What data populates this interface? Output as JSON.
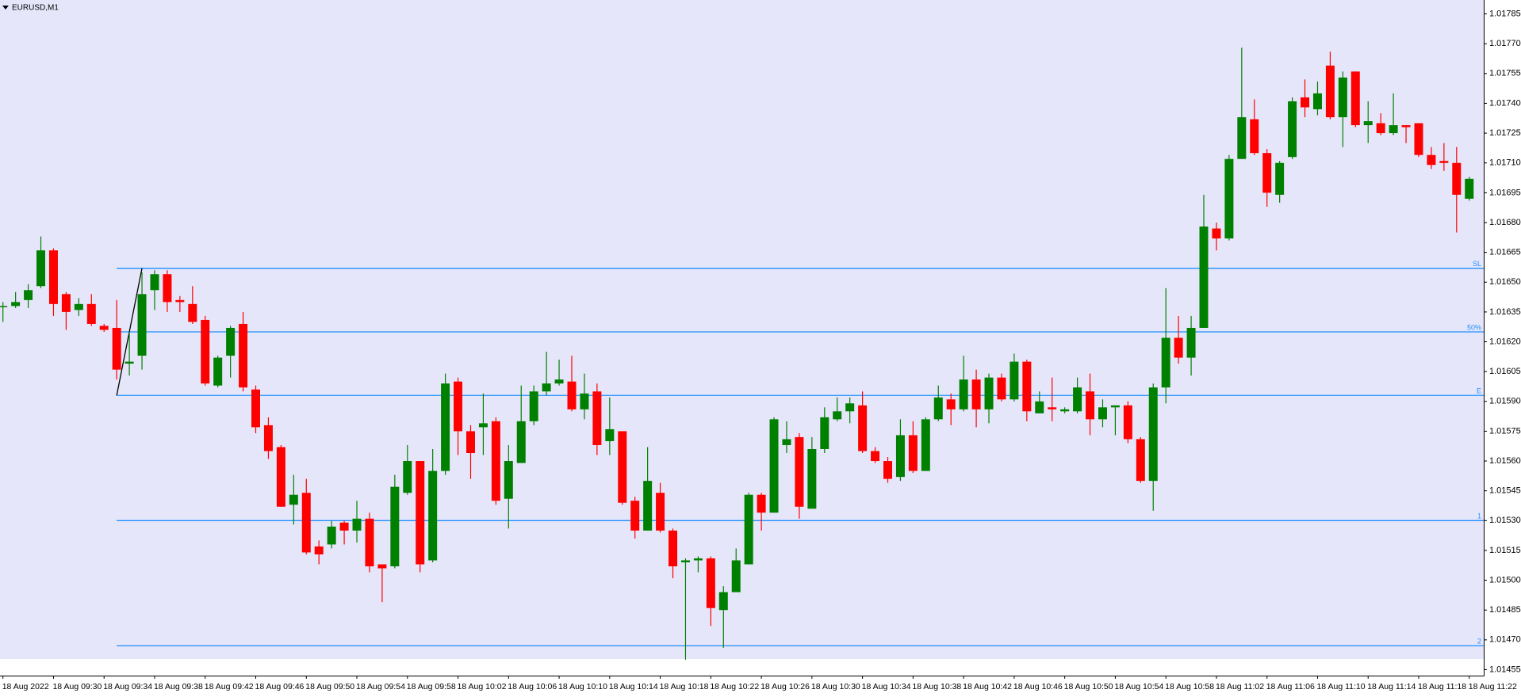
{
  "chart_data": {
    "type": "candlestick",
    "title": "EURUSD,M1",
    "categories": [
      "18 Aug 2022",
      null,
      null,
      null,
      "18 Aug 09:30",
      null,
      null,
      null,
      "18 Aug 09:34",
      null,
      null,
      null,
      "18 Aug 09:38",
      null,
      null,
      null,
      "18 Aug 09:42",
      null,
      null,
      null,
      "18 Aug 09:46",
      null,
      null,
      null,
      "18 Aug 09:50",
      null,
      null,
      null,
      "18 Aug 09:54",
      null,
      null,
      null,
      "18 Aug 09:58",
      null,
      null,
      null,
      "18 Aug 10:02",
      null,
      null,
      null,
      "18 Aug 10:06",
      null,
      null,
      null,
      "18 Aug 10:10",
      null,
      null,
      null,
      "18 Aug 10:14",
      null,
      null,
      null,
      "18 Aug 10:18",
      null,
      null,
      null,
      "18 Aug 10:22",
      null,
      null,
      null,
      "18 Aug 10:26",
      null,
      null,
      null,
      "18 Aug 10:30",
      null,
      null,
      null,
      "18 Aug 10:34",
      null,
      null,
      null,
      "18 Aug 10:38",
      null,
      null,
      null,
      "18 Aug 10:42",
      null,
      null,
      null,
      "18 Aug 10:46",
      null,
      null,
      null,
      "18 Aug 10:50",
      null,
      null,
      null,
      "18 Aug 10:54",
      null,
      null,
      null,
      "18 Aug 10:58",
      null,
      null,
      null,
      "18 Aug 11:02",
      null,
      null,
      null,
      "18 Aug 11:06",
      null,
      null,
      null,
      "18 Aug 11:10",
      null,
      null,
      null,
      "18 Aug 11:14",
      null,
      null,
      null,
      "18 Aug 11:18",
      null,
      null,
      null,
      "18 Aug 11:22"
    ],
    "open": [
      1.01638,
      1.01638,
      1.01641,
      1.01648,
      1.01666,
      1.01644,
      1.01636,
      1.01639,
      1.01628,
      1.01627,
      1.01609,
      1.01613,
      1.01646,
      1.01654,
      1.01641,
      1.01639,
      1.01631,
      1.01598,
      1.01613,
      1.01629,
      1.01596,
      1.01578,
      1.01567,
      1.01538,
      1.01544,
      1.01517,
      1.01518,
      1.01529,
      1.01525,
      1.01531,
      1.01508,
      1.01507,
      1.01544,
      1.0156,
      1.0151,
      1.01555,
      1.016,
      1.01575,
      1.01577,
      1.0158,
      1.01541,
      1.01559,
      1.0158,
      1.01595,
      1.01599,
      1.016,
      1.01586,
      1.01595,
      1.0157,
      1.01575,
      1.0154,
      1.01525,
      1.01544,
      1.01525,
      1.01509,
      1.0151,
      1.01511,
      1.01485,
      1.01494,
      1.01508,
      1.01543,
      1.01534,
      1.01568,
      1.01572,
      1.01536,
      1.01566,
      1.01581,
      1.01585,
      1.01588,
      1.01565,
      1.0156,
      1.01552,
      1.01573,
      1.01555,
      1.01581,
      1.01591,
      1.01586,
      1.01601,
      1.01586,
      1.01602,
      1.01591,
      1.0161,
      1.01584,
      1.01587,
      1.01585,
      1.01585,
      1.01595,
      1.01581,
      1.01587,
      1.01588,
      1.01571,
      1.0155,
      1.01597,
      1.01622,
      1.01612,
      1.01627,
      1.01677,
      1.01672,
      1.01712,
      1.01732,
      1.01715,
      1.01694,
      1.01713,
      1.01743,
      1.01737,
      1.01759,
      1.01733,
      1.01756,
      1.01729,
      1.0173,
      1.01725,
      1.01729,
      1.0173,
      1.01714,
      1.01711,
      1.0171,
      1.01692
    ],
    "high": [
      1.0164,
      1.01645,
      1.01649,
      1.01673,
      1.01667,
      1.01645,
      1.01642,
      1.01644,
      1.01629,
      1.01641,
      1.01625,
      1.01655,
      1.01656,
      1.01656,
      1.01643,
      1.01648,
      1.01633,
      1.01613,
      1.01628,
      1.01635,
      1.01598,
      1.01582,
      1.01568,
      1.01553,
      1.01551,
      1.0152,
      1.0153,
      1.0153,
      1.0154,
      1.01534,
      1.01508,
      1.01553,
      1.01568,
      1.0156,
      1.01566,
      1.01604,
      1.01602,
      1.01578,
      1.01594,
      1.01582,
      1.01568,
      1.01598,
      1.01598,
      1.01615,
      1.01611,
      1.01613,
      1.01604,
      1.01599,
      1.01592,
      1.01575,
      1.01542,
      1.01567,
      1.01549,
      1.01526,
      1.01511,
      1.01512,
      1.01512,
      1.01497,
      1.01516,
      1.01544,
      1.01544,
      1.01582,
      1.0158,
      1.01574,
      1.01572,
      1.01587,
      1.01592,
      1.01592,
      1.01595,
      1.01567,
      1.01562,
      1.01581,
      1.0158,
      1.01582,
      1.01598,
      1.01594,
      1.01613,
      1.01606,
      1.01604,
      1.01604,
      1.01614,
      1.01611,
      1.01595,
      1.01602,
      1.01587,
      1.01602,
      1.01604,
      1.01591,
      1.01588,
      1.0159,
      1.01572,
      1.01599,
      1.01647,
      1.01633,
      1.01633,
      1.01694,
      1.0168,
      1.01714,
      1.01768,
      1.01742,
      1.01717,
      1.01711,
      1.01743,
      1.01752,
      1.01751,
      1.01766,
      1.01756,
      1.01756,
      1.01741,
      1.01735,
      1.01745,
      1.01729,
      1.0173,
      1.01718,
      1.0172,
      1.01718,
      1.01703
    ],
    "low": [
      1.0163,
      1.01637,
      1.01637,
      1.01647,
      1.01633,
      1.01626,
      1.01633,
      1.01628,
      1.01625,
      1.01601,
      1.01603,
      1.01606,
      1.01636,
      1.01635,
      1.01635,
      1.01629,
      1.01598,
      1.01597,
      1.01602,
      1.01595,
      1.01574,
      1.01561,
      1.01537,
      1.01528,
      1.01513,
      1.01508,
      1.01516,
      1.01518,
      1.01519,
      1.01504,
      1.01489,
      1.01506,
      1.01543,
      1.01504,
      1.01509,
      1.01553,
      1.01563,
      1.01551,
      1.01563,
      1.01538,
      1.01526,
      1.01559,
      1.01578,
      1.01593,
      1.01598,
      1.01585,
      1.01581,
      1.01563,
      1.01563,
      1.01538,
      1.01521,
      1.01525,
      1.01524,
      1.01501,
      1.0146,
      1.01504,
      1.01477,
      1.01466,
      1.01494,
      1.01508,
      1.01525,
      1.01534,
      1.01564,
      1.01531,
      1.01536,
      1.01564,
      1.0158,
      1.01579,
      1.01564,
      1.01559,
      1.01549,
      1.0155,
      1.01554,
      1.01555,
      1.0158,
      1.01578,
      1.01585,
      1.01577,
      1.01579,
      1.0159,
      1.0159,
      1.0158,
      1.01584,
      1.0158,
      1.01584,
      1.01584,
      1.01573,
      1.01577,
      1.01573,
      1.01569,
      1.01549,
      1.01535,
      1.01589,
      1.01609,
      1.01603,
      1.01627,
      1.01666,
      1.01671,
      1.01712,
      1.01714,
      1.01688,
      1.0169,
      1.01712,
      1.01733,
      1.01734,
      1.01732,
      1.01718,
      1.01728,
      1.0172,
      1.01724,
      1.01724,
      1.0172,
      1.01713,
      1.01707,
      1.01706,
      1.01675,
      1.01691
    ],
    "close": [
      1.01638,
      1.0164,
      1.01646,
      1.01666,
      1.01639,
      1.01635,
      1.01639,
      1.01629,
      1.01626,
      1.01606,
      1.0161,
      1.01644,
      1.01654,
      1.0164,
      1.0164,
      1.0163,
      1.01599,
      1.01612,
      1.01627,
      1.01597,
      1.01577,
      1.01565,
      1.01537,
      1.01543,
      1.01514,
      1.01513,
      1.01527,
      1.01525,
      1.01531,
      1.01507,
      1.01506,
      1.01547,
      1.0156,
      1.01508,
      1.01555,
      1.01599,
      1.01575,
      1.01564,
      1.01579,
      1.0154,
      1.0156,
      1.0158,
      1.01595,
      1.01599,
      1.01601,
      1.01586,
      1.01594,
      1.01568,
      1.01576,
      1.01539,
      1.01525,
      1.0155,
      1.01525,
      1.01507,
      1.0151,
      1.01511,
      1.01486,
      1.01494,
      1.0151,
      1.01543,
      1.01534,
      1.01581,
      1.01571,
      1.01537,
      1.01566,
      1.01582,
      1.01585,
      1.01589,
      1.01565,
      1.0156,
      1.01551,
      1.01573,
      1.01555,
      1.01581,
      1.01592,
      1.01586,
      1.01601,
      1.01586,
      1.01602,
      1.01591,
      1.0161,
      1.01585,
      1.0159,
      1.01586,
      1.01586,
      1.01597,
      1.01581,
      1.01587,
      1.01588,
      1.01571,
      1.0155,
      1.01597,
      1.01622,
      1.01612,
      1.01627,
      1.01678,
      1.01672,
      1.01712,
      1.01733,
      1.01715,
      1.01695,
      1.0171,
      1.01741,
      1.01738,
      1.01745,
      1.01733,
      1.01753,
      1.01729,
      1.01731,
      1.01725,
      1.01729,
      1.01728,
      1.01714,
      1.01709,
      1.0171,
      1.01694,
      1.01702
    ],
    "up_color": "#008000",
    "down_color": "#ff0000",
    "level_color": "#1e90ff",
    "fibo_levels": [
      {
        "label": "SL",
        "value": 1.01657
      },
      {
        "label": "50%",
        "value": 1.01625
      },
      {
        "label": "E",
        "value": 1.01593
      },
      {
        "label": "1",
        "value": 1.0153
      },
      {
        "label": "2",
        "value": 1.01467
      }
    ],
    "ylim": [
      1.01452,
      1.01792
    ],
    "yticks": [
      1.01785,
      {
        "value": 1.0177,
        "label": "1.01770"
      },
      1.01755,
      {
        "value": 1.0174,
        "label": "1.01740"
      },
      1.01725,
      {
        "value": 1.0171,
        "label": "1.01710"
      },
      1.01695,
      {
        "value": 1.0168,
        "label": "1.01680"
      },
      1.01665,
      {
        "value": 1.0165,
        "label": "1.01650"
      },
      1.01635,
      {
        "value": 1.0162,
        "label": "1.01620"
      },
      1.01605,
      {
        "value": 1.0159,
        "label": "1.01590"
      },
      1.01575,
      {
        "value": 1.0156,
        "label": "1.01560"
      },
      1.01545,
      {
        "value": 1.0153,
        "label": "1.01530"
      },
      1.01515,
      {
        "value": 1.015,
        "label": "1.01500"
      },
      1.01485,
      {
        "value": 1.0147,
        "label": "1.01470"
      },
      1.01455
    ]
  }
}
